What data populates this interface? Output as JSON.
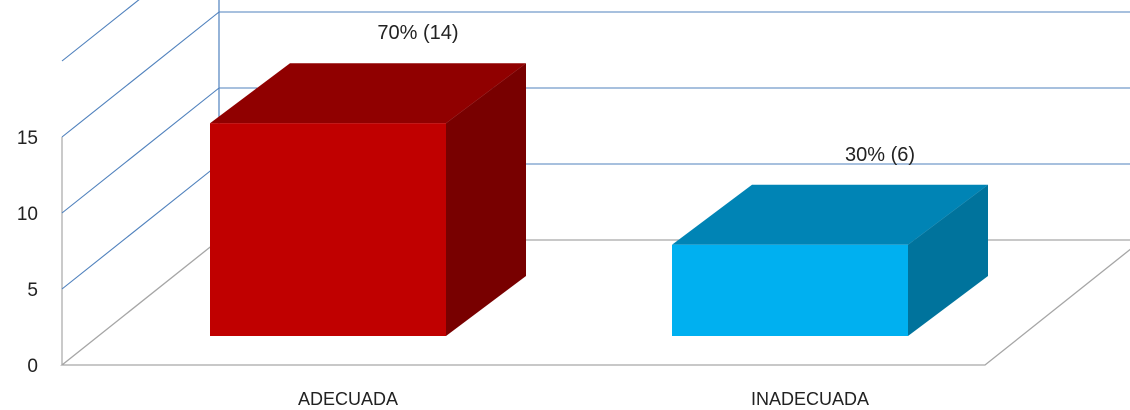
{
  "chart_data": {
    "type": "bar",
    "categories": [
      "ADECUADA",
      "INADECUADA"
    ],
    "values": [
      14,
      6
    ],
    "data_labels": [
      "70% (14)",
      "30% (6)"
    ],
    "ylim": [
      0,
      15
    ],
    "yticks": [
      0,
      5,
      10,
      15
    ],
    "ytick_labels": [
      "0",
      "5",
      "10",
      "15"
    ],
    "grid": true,
    "style": "3d",
    "colors": {
      "bars": [
        {
          "front": "#c00000",
          "top": "#900000",
          "side": "#780000"
        },
        {
          "front": "#00b0f0",
          "top": "#0084b5",
          "side": "#00739c"
        }
      ],
      "gridline": "#4f81bd",
      "floor": "#a6a6a6"
    }
  }
}
